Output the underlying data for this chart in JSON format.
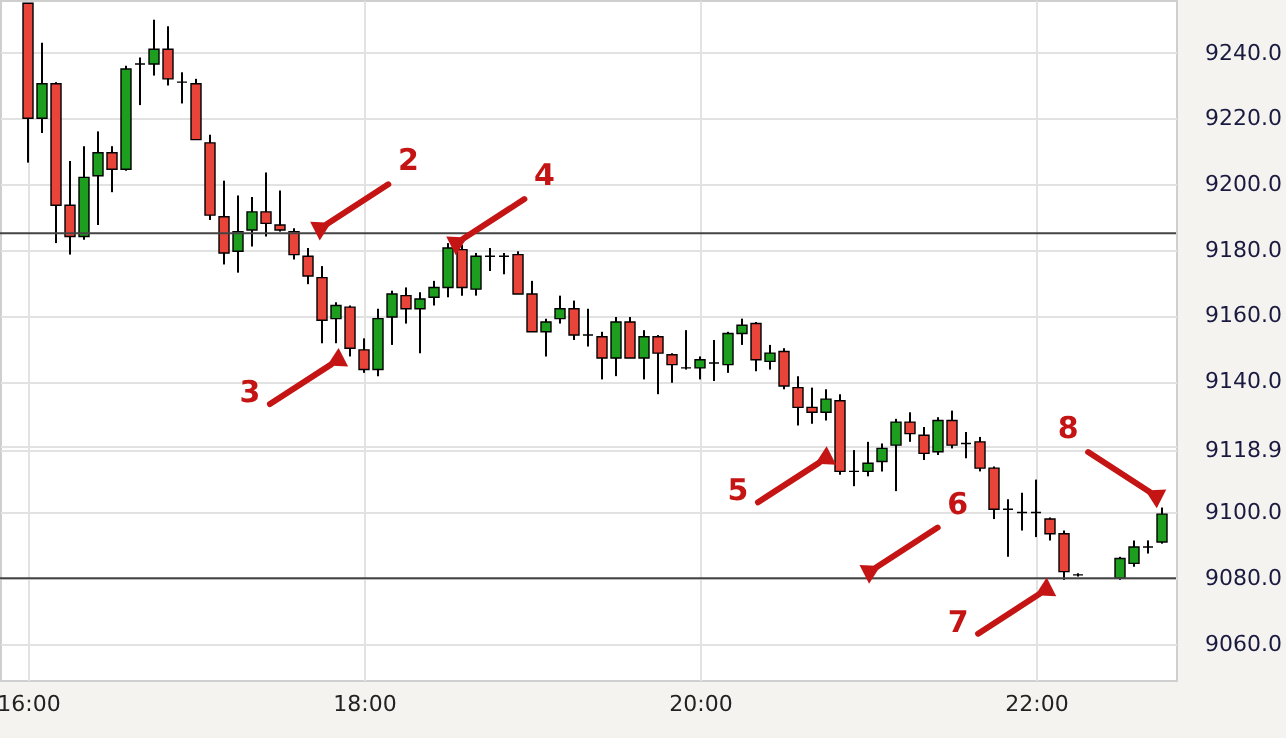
{
  "chart_data": {
    "type": "candlestick",
    "x": [
      16,
      16.0833,
      16.1667,
      16.25,
      16.3333,
      16.4167,
      16.5,
      16.5833,
      16.6667,
      16.75,
      16.8333,
      16.9167,
      17,
      17.0833,
      17.1667,
      17.25,
      17.3333,
      17.4167,
      17.5,
      17.5833,
      17.6667,
      17.75,
      17.8333,
      17.9167,
      18,
      18.0833,
      18.1667,
      18.25,
      18.3333,
      18.4167,
      18.5,
      18.5833,
      18.6667,
      18.75,
      18.8333,
      18.9167,
      19,
      19.0833,
      19.1667,
      19.25,
      19.3333,
      19.4167,
      19.5,
      19.5833,
      19.6667,
      19.75,
      19.8333,
      19.9167,
      20,
      20.0833,
      20.1667,
      20.25,
      20.3333,
      20.4167,
      20.5,
      20.5833,
      20.6667,
      20.75,
      20.8333,
      20.9167,
      21,
      21.0833,
      21.1667,
      21.25,
      21.3333,
      21.4167,
      21.5,
      21.5833,
      21.6667,
      21.75,
      21.8333,
      21.9167,
      22,
      22.0833,
      22.1667,
      22.25,
      22.5,
      22.5833,
      22.6667,
      22.75
    ],
    "ohlc": [
      [
        9255,
        9255,
        9206.5,
        9220
      ],
      [
        9220,
        9243,
        9215.5,
        9230.5
      ],
      [
        9230.5,
        9231,
        9182,
        9193.5
      ],
      [
        9193.5,
        9207,
        9178.5,
        9184
      ],
      [
        9184,
        9211.5,
        9183,
        9202
      ],
      [
        9202.5,
        9216,
        9187.5,
        9209.5
      ],
      [
        9209.5,
        9211.5,
        9197.5,
        9204.5
      ],
      [
        9204.5,
        9236,
        9204,
        9235
      ],
      [
        9236.5,
        9238.5,
        9224,
        9236.5
      ],
      [
        9236.5,
        9250,
        9233,
        9241
      ],
      [
        9241,
        9248,
        9230,
        9232
      ],
      [
        9231,
        9234,
        9224.5,
        9231
      ],
      [
        9230.5,
        9232,
        9213.5,
        9213.5
      ],
      [
        9212.5,
        9215,
        9189,
        9190.5
      ],
      [
        9190,
        9201,
        9175.5,
        9179
      ],
      [
        9179.5,
        9196.5,
        9173,
        9185.5
      ],
      [
        9186,
        9196,
        9181,
        9191.5
      ],
      [
        9191.5,
        9203.5,
        9184,
        9188
      ],
      [
        9187.5,
        9198,
        9185.5,
        9186
      ],
      [
        9185.5,
        9186.5,
        9177,
        9178.5
      ],
      [
        9178,
        9180.5,
        9169.5,
        9172
      ],
      [
        9171.5,
        9175,
        9151.5,
        9158.5
      ],
      [
        9159,
        9164,
        9151.5,
        9163
      ],
      [
        9162.5,
        9163,
        9147.5,
        9150
      ],
      [
        9149.5,
        9153,
        9142.5,
        9143.5
      ],
      [
        9143.5,
        9162,
        9141.5,
        9159
      ],
      [
        9159.5,
        9167.5,
        9151,
        9166.5
      ],
      [
        9166,
        9168.5,
        9157.5,
        9162
      ],
      [
        9162,
        9167,
        9148.5,
        9165
      ],
      [
        9165.5,
        9170.5,
        9163,
        9168.5
      ],
      [
        9168.5,
        9182,
        9165.5,
        9180.5
      ],
      [
        9180,
        9181.5,
        9166,
        9168.5
      ],
      [
        9168,
        9179,
        9166,
        9178
      ],
      [
        9178,
        9180.5,
        9173.5,
        9178
      ],
      [
        9178,
        9179,
        9172.5,
        9178
      ],
      [
        9178.5,
        9179.5,
        9166.5,
        9166.5
      ],
      [
        9166.5,
        9170.5,
        9155,
        9155
      ],
      [
        9155,
        9159,
        9147.5,
        9158
      ],
      [
        9159,
        9166,
        9157.5,
        9162
      ],
      [
        9162,
        9164.5,
        9152.5,
        9154
      ],
      [
        9154,
        9162,
        9150.5,
        9154
      ],
      [
        9153.5,
        9155,
        9140.5,
        9147
      ],
      [
        9147,
        9159.5,
        9141.5,
        9158
      ],
      [
        9158,
        9159.5,
        9147,
        9147
      ],
      [
        9147,
        9155.5,
        9140.5,
        9153.5
      ],
      [
        9153.5,
        9154,
        9136,
        9148.5
      ],
      [
        9148,
        9148.5,
        9139.5,
        9145
      ],
      [
        9144,
        9155.5,
        9143.5,
        9144
      ],
      [
        9144,
        9147.5,
        9140.5,
        9146.5
      ],
      [
        9145.5,
        9152.5,
        9140,
        9145.5
      ],
      [
        9145,
        9155,
        9142.5,
        9154.5
      ],
      [
        9154.5,
        9159,
        9151,
        9157
      ],
      [
        9157.5,
        9158,
        9143,
        9146.5
      ],
      [
        9146,
        9151,
        9143.5,
        9148.5
      ],
      [
        9149,
        9150,
        9137.5,
        9138.5
      ],
      [
        9138,
        9141.5,
        9126.5,
        9132
      ],
      [
        9132,
        9138,
        9127,
        9130.5
      ],
      [
        9130.5,
        9137.5,
        9128,
        9134.5
      ],
      [
        9134,
        9136,
        9111.5,
        9112.5
      ],
      [
        9112.5,
        9119,
        9108,
        9112.5
      ],
      [
        9112.5,
        9121.5,
        9111,
        9115
      ],
      [
        9115.5,
        9121,
        9112.5,
        9119.5
      ],
      [
        9120.5,
        9128.5,
        9106.5,
        9127.5
      ],
      [
        9127.5,
        9130.5,
        9121.5,
        9124
      ],
      [
        9123.5,
        9126,
        9116,
        9118
      ],
      [
        9118.5,
        9129,
        9117.5,
        9128
      ],
      [
        9128,
        9131,
        9119.5,
        9120.5
      ],
      [
        9121,
        9124.5,
        9116.5,
        9121
      ],
      [
        9121.5,
        9123,
        9112.5,
        9113.5
      ],
      [
        9113.5,
        9114,
        9098,
        9101
      ],
      [
        9101,
        9104,
        9086.5,
        9101
      ],
      [
        9100,
        9106,
        9094.5,
        9100
      ],
      [
        9100,
        9110,
        9092.5,
        9100
      ],
      [
        9098,
        9098.5,
        9091.5,
        9093.5
      ],
      [
        9093.5,
        9094.5,
        9079.5,
        9082
      ],
      [
        9081,
        9081.5,
        9080.5,
        9081
      ],
      [
        9080,
        9086.5,
        9079.5,
        9086
      ],
      [
        9084.5,
        9091.5,
        9083.5,
        9089.5
      ],
      [
        9089.5,
        9091.5,
        9087.5,
        9089.5
      ],
      [
        9091,
        9101.5,
        9090.5,
        9099.5
      ]
    ],
    "xlim": [
      15.8333,
      22.8333
    ],
    "xticks": [
      {
        "value": 16,
        "label": "16:00"
      },
      {
        "value": 18,
        "label": "18:00"
      },
      {
        "value": 20,
        "label": "20:00"
      },
      {
        "value": 22,
        "label": "22:00"
      }
    ],
    "ylim": [
      9049,
      9256
    ],
    "yticks": [
      {
        "value": 9060,
        "label": "9060.0"
      },
      {
        "value": 9080,
        "label": "9080.0"
      },
      {
        "value": 9100,
        "label": "9100.0"
      },
      {
        "value": 9120,
        "label": null
      },
      {
        "value": 9118.9,
        "label": "9118.9"
      },
      {
        "value": 9140,
        "label": "9140.0"
      },
      {
        "value": 9160,
        "label": "9160.0"
      },
      {
        "value": 9180,
        "label": "9180.0"
      },
      {
        "value": 9200,
        "label": "9200.0"
      },
      {
        "value": 9220,
        "label": "9220.0"
      },
      {
        "value": 9240,
        "label": "9240.0"
      }
    ],
    "grid": true,
    "ref_lines": [
      {
        "axis": "y",
        "value": 9185,
        "color": "#444444"
      },
      {
        "axis": "y",
        "value": 9080,
        "color": "#444444"
      }
    ],
    "annotations": [
      {
        "text": "2",
        "x": 17.74,
        "y": 9186.5
      },
      {
        "text": "3",
        "x": 17.845,
        "y": 9146.4
      },
      {
        "text": "4",
        "x": 18.55,
        "y": 9182
      },
      {
        "text": "5",
        "x": 20.75,
        "y": 9116.5
      },
      {
        "text": "6",
        "x": 21.01,
        "y": 9082
      },
      {
        "text": "7",
        "x": 22.06,
        "y": 9076.5
      },
      {
        "text": "8",
        "x": 22.715,
        "y": 9105
      }
    ]
  }
}
